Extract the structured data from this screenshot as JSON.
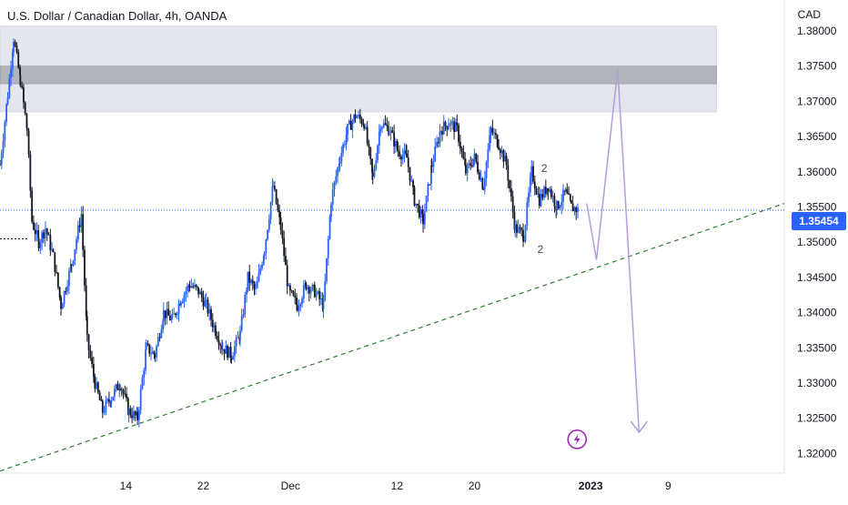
{
  "header": {
    "title": "U.S. Dollar / Canadian Dollar, 4h, OANDA",
    "currency": "CAD"
  },
  "price_badge": "1.35454",
  "markers": [
    "2",
    "2"
  ],
  "colors": {
    "up": "#2962ff",
    "down": "#131722",
    "trend": "#2e7d32",
    "projection": "#b39ddb",
    "zone_light": "#e1e3ea",
    "zone_dark": "#a8aab1",
    "lightning": "#9c27b0"
  },
  "icons": {
    "event": "lightning-icon"
  },
  "chart_data": {
    "type": "candlestick-line",
    "title": "U.S. Dollar / Canadian Dollar, 4h, OANDA",
    "y_ticks": [
      "1.38000",
      "1.37500",
      "1.37000",
      "1.36500",
      "1.36000",
      "1.35500",
      "1.35000",
      "1.34500",
      "1.34000",
      "1.33500",
      "1.33000",
      "1.32500",
      "1.32000"
    ],
    "y_tick_values": [
      1.38,
      1.375,
      1.37,
      1.365,
      1.36,
      1.355,
      1.35,
      1.345,
      1.34,
      1.335,
      1.33,
      1.325,
      1.32
    ],
    "ylim": [
      1.3172,
      1.3844
    ],
    "x_ticks": [
      "14",
      "22",
      "Dec",
      "12",
      "20",
      "2023",
      "9"
    ],
    "x_tick_days": [
      14,
      22,
      31,
      42,
      50,
      62,
      70
    ],
    "xlim": [
      1,
      82
    ],
    "last_price": 1.35454,
    "price_path": [
      [
        1,
        1.361
      ],
      [
        1.8,
        1.371
      ],
      [
        2.4,
        1.379
      ],
      [
        3.1,
        1.373
      ],
      [
        3.8,
        1.366
      ],
      [
        4.3,
        1.353
      ],
      [
        5.0,
        1.35
      ],
      [
        5.7,
        1.352
      ],
      [
        6.5,
        1.348
      ],
      [
        7.3,
        1.341
      ],
      [
        8.4,
        1.347
      ],
      [
        9.4,
        1.354
      ],
      [
        10.0,
        1.336
      ],
      [
        10.8,
        1.33
      ],
      [
        11.6,
        1.326
      ],
      [
        12.5,
        1.328
      ],
      [
        13.4,
        1.33
      ],
      [
        14.3,
        1.326
      ],
      [
        15.2,
        1.325
      ],
      [
        16.1,
        1.335
      ],
      [
        17.0,
        1.334
      ],
      [
        17.9,
        1.34
      ],
      [
        18.8,
        1.339
      ],
      [
        19.7,
        1.342
      ],
      [
        20.6,
        1.344
      ],
      [
        21.5,
        1.343
      ],
      [
        22.3,
        1.341
      ],
      [
        23.1,
        1.338
      ],
      [
        24.0,
        1.335
      ],
      [
        24.9,
        1.334
      ],
      [
        25.8,
        1.337
      ],
      [
        26.6,
        1.345
      ],
      [
        27.4,
        1.343
      ],
      [
        28.3,
        1.349
      ],
      [
        29.2,
        1.358
      ],
      [
        30.0,
        1.352
      ],
      [
        30.8,
        1.343
      ],
      [
        31.7,
        1.341
      ],
      [
        32.6,
        1.344
      ],
      [
        33.5,
        1.343
      ],
      [
        34.4,
        1.341
      ],
      [
        35.2,
        1.356
      ],
      [
        36.1,
        1.362
      ],
      [
        36.9,
        1.366
      ],
      [
        37.7,
        1.368
      ],
      [
        38.6,
        1.367
      ],
      [
        39.5,
        1.359
      ],
      [
        40.3,
        1.367
      ],
      [
        41.2,
        1.366
      ],
      [
        42.1,
        1.363
      ],
      [
        43.0,
        1.362
      ],
      [
        43.8,
        1.356
      ],
      [
        44.7,
        1.353
      ],
      [
        45.6,
        1.361
      ],
      [
        46.5,
        1.366
      ],
      [
        47.4,
        1.367
      ],
      [
        48.2,
        1.366
      ],
      [
        49.1,
        1.36
      ],
      [
        50.0,
        1.362
      ],
      [
        50.9,
        1.358
      ],
      [
        51.7,
        1.366
      ],
      [
        52.5,
        1.364
      ],
      [
        53.3,
        1.361
      ],
      [
        54.2,
        1.352
      ],
      [
        55.1,
        1.351
      ],
      [
        55.9,
        1.36
      ],
      [
        56.7,
        1.356
      ],
      [
        57.6,
        1.358
      ],
      [
        58.5,
        1.355
      ],
      [
        59.4,
        1.357
      ],
      [
        60.0,
        1.355
      ],
      [
        60.8,
        1.3545
      ]
    ],
    "trendline": [
      [
        1,
        1.3175
      ],
      [
        82,
        1.3555
      ]
    ],
    "projection": [
      [
        61.6,
        1.3555
      ],
      [
        62.6,
        1.3475
      ],
      [
        64.8,
        1.3745
      ],
      [
        67.0,
        1.323
      ]
    ],
    "zones": [
      {
        "x0": 1,
        "x1": 75,
        "y0": 1.3685,
        "y1": 1.3807,
        "shade": "light"
      },
      {
        "x0": 1,
        "x1": 75,
        "y0": 1.3725,
        "y1": 1.375,
        "shade": "dark"
      }
    ],
    "markers": [
      {
        "x": 56.9,
        "y": 1.3605,
        "label": "2"
      },
      {
        "x": 56.5,
        "y": 1.349,
        "label": "2"
      }
    ],
    "event_icon": {
      "x": 60.6,
      "y": 1.322
    }
  }
}
